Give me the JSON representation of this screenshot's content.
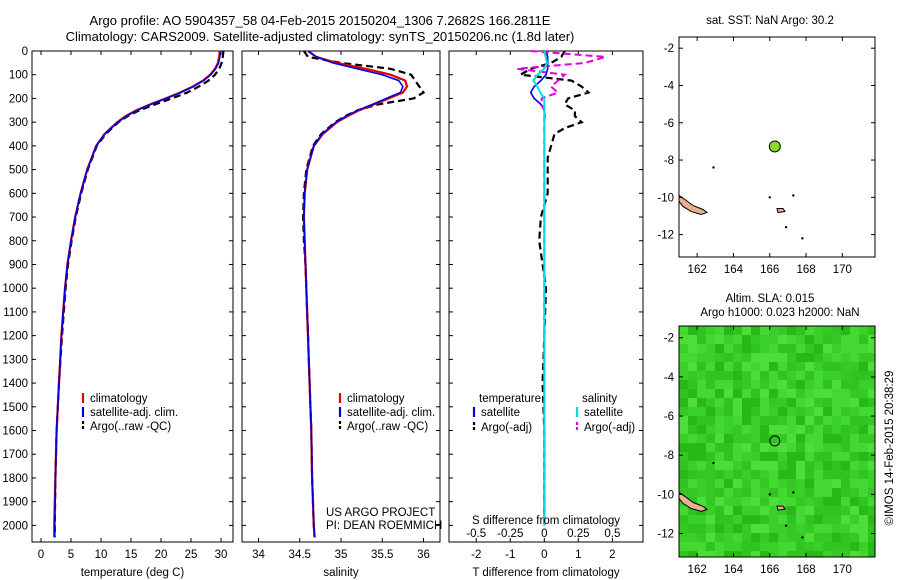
{
  "title": {
    "line1": "Argo profile: AO 5904357_58 04-Feb-2015 20150204_1306 7.2682S 166.2811E",
    "line2": "Climatology: CARS2009. Satellite-adjusted climatology: synTS_20150206.nc (1.8d later)"
  },
  "depth_axis": {
    "ticks": [
      0,
      100,
      200,
      300,
      400,
      500,
      600,
      700,
      800,
      900,
      1000,
      1100,
      1200,
      1300,
      1400,
      1500,
      1600,
      1700,
      1800,
      1900,
      2000
    ],
    "ylim": [
      0,
      2070
    ]
  },
  "colors": {
    "climatology": "#e00000",
    "satellite": "#0000e0",
    "argo": "#000000",
    "sal_satellite": "#00e0e0",
    "sal_argo": "#e000e0",
    "sla_green": "#33cc22",
    "sst_dot": "#88dd22",
    "land": "#e8b090"
  },
  "chart_data": [
    {
      "type": "line",
      "panel": "temperature",
      "xlabel": "temperature (deg C)",
      "xlim": [
        -1.5,
        32
      ],
      "xticks": [
        "0",
        "5",
        "10",
        "15",
        "20",
        "25",
        "30"
      ],
      "legend": [
        "climatology",
        "satellite-adj. clim.",
        "Argo(..raw -QC)"
      ],
      "depth": [
        0,
        25,
        50,
        75,
        100,
        125,
        150,
        175,
        200,
        225,
        250,
        275,
        300,
        350,
        400,
        500,
        600,
        700,
        800,
        900,
        1000,
        1200,
        1400,
        1600,
        1800,
        2000,
        2050
      ],
      "series": [
        {
          "name": "climatology",
          "values": [
            29.8,
            29.7,
            29.5,
            29.0,
            28.2,
            27.0,
            25.3,
            23.2,
            20.8,
            18.2,
            15.9,
            14.1,
            12.7,
            10.6,
            9.2,
            7.7,
            6.6,
            5.7,
            5.0,
            4.4,
            4.0,
            3.4,
            3.0,
            2.6,
            2.4,
            2.2,
            2.2
          ]
        },
        {
          "name": "satellite-adj. clim.",
          "values": [
            29.9,
            29.8,
            29.6,
            29.1,
            28.3,
            27.1,
            25.4,
            23.3,
            20.9,
            18.3,
            16.0,
            14.2,
            12.8,
            10.6,
            9.2,
            7.7,
            6.6,
            5.7,
            5.0,
            4.4,
            4.0,
            3.4,
            3.0,
            2.6,
            2.4,
            2.3,
            2.3
          ]
        },
        {
          "name": "Argo(..raw -QC)",
          "values": [
            30.4,
            30.3,
            30.1,
            29.7,
            29.0,
            27.9,
            26.3,
            24.4,
            21.8,
            19.0,
            16.4,
            14.4,
            12.9,
            10.8,
            9.3,
            7.8,
            6.7,
            5.8,
            5.1,
            4.5,
            4.1,
            3.5,
            3.0,
            2.6,
            2.4,
            2.3,
            2.3
          ]
        }
      ]
    },
    {
      "type": "line",
      "panel": "salinity",
      "xlabel": "salinity",
      "xlim": [
        33.8,
        36.2
      ],
      "xticks": [
        "34",
        "34.5",
        "35",
        "35.5",
        "36"
      ],
      "legend": [
        "climatology",
        "satellite-adj. clim.",
        "Argo(..raw -QC)"
      ],
      "credit": [
        "US ARGO PROJECT",
        "PI: DEAN ROEMMICH"
      ],
      "depth": [
        0,
        25,
        50,
        75,
        100,
        125,
        150,
        175,
        200,
        225,
        250,
        275,
        300,
        350,
        400,
        500,
        600,
        700,
        800,
        900,
        1000,
        1200,
        1400,
        1600,
        1800,
        2000,
        2050
      ],
      "series": [
        {
          "name": "climatology",
          "values": [
            34.6,
            34.7,
            34.95,
            35.3,
            35.6,
            35.78,
            35.8,
            35.75,
            35.58,
            35.4,
            35.22,
            35.08,
            34.95,
            34.78,
            34.67,
            34.59,
            34.56,
            34.55,
            34.56,
            34.57,
            34.58,
            34.6,
            34.62,
            34.64,
            34.65,
            34.67,
            34.68
          ]
        },
        {
          "name": "satellite-adj. clim.",
          "values": [
            34.6,
            34.7,
            34.9,
            35.2,
            35.5,
            35.7,
            35.75,
            35.72,
            35.55,
            35.38,
            35.2,
            35.06,
            34.94,
            34.77,
            34.67,
            34.59,
            34.56,
            34.55,
            34.56,
            34.57,
            34.58,
            34.6,
            34.62,
            34.64,
            34.65,
            34.67,
            34.68
          ]
        },
        {
          "name": "Argo(..raw -QC)",
          "values": [
            34.55,
            34.6,
            35.0,
            35.6,
            35.85,
            35.9,
            35.95,
            36.0,
            35.88,
            35.45,
            35.2,
            35.05,
            34.93,
            34.76,
            34.66,
            34.58,
            34.55,
            34.54,
            34.55,
            34.57,
            34.58,
            34.6,
            34.62,
            34.64,
            34.65,
            34.67,
            34.68
          ]
        }
      ]
    },
    {
      "type": "line",
      "panel": "difference",
      "xlabel": "T difference from climatology",
      "xlabel_top": "S difference from climatology",
      "xlim": [
        -2.8,
        2.9
      ],
      "xticks": [
        "-2",
        "-1",
        "0",
        "1",
        "2"
      ],
      "xticks_top": [
        "-0.5",
        "-0.25",
        "0",
        "0.25",
        "0.5"
      ],
      "legend_headers": [
        "temperature",
        "salinity"
      ],
      "legend": [
        "satellite",
        "Argo(-adj)",
        "satellite",
        "Argo(-adj)"
      ],
      "depth": [
        0,
        25,
        50,
        75,
        100,
        125,
        150,
        175,
        200,
        225,
        250,
        275,
        300,
        325,
        350,
        400,
        450,
        500,
        600,
        700,
        800,
        900,
        1000,
        1200,
        1400,
        1600,
        1800,
        2000
      ],
      "series": [
        {
          "name": "T satellite",
          "values": [
            0.05,
            0.1,
            0.1,
            0.1,
            0.05,
            -0.1,
            -0.3,
            -0.4,
            -0.3,
            -0.1,
            0.0,
            0.02,
            0.0,
            0.0,
            0.0,
            0.0,
            0.0,
            0.0,
            0.0,
            0.0,
            0.0,
            0.0,
            0.0,
            0.0,
            0.0,
            0.0,
            0.0,
            0.0
          ]
        },
        {
          "name": "T Argo(-adj)",
          "values": [
            0.6,
            0.5,
            0.2,
            -0.4,
            -0.7,
            0.8,
            1.1,
            1.3,
            0.7,
            0.6,
            0.9,
            0.9,
            1.1,
            0.6,
            0.3,
            0.2,
            0.1,
            0.1,
            0.1,
            -0.1,
            -0.15,
            -0.05,
            0.05,
            0.0,
            -0.05,
            0.0,
            0.0,
            0.0
          ]
        },
        {
          "name": "S satellite",
          "values": [
            0.0,
            0.01,
            0.02,
            0.0,
            -0.05,
            -0.08,
            -0.05,
            -0.03,
            0.0,
            0.0,
            0.0,
            0.0,
            0.0,
            0.0,
            0.0,
            0.0,
            0.0,
            0.0,
            0.0,
            0.0,
            0.0,
            0.0,
            0.0,
            0.0,
            0.0,
            0.0,
            0.0,
            0.0
          ]
        },
        {
          "name": "S Argo(-adj)",
          "values": [
            -0.1,
            0.45,
            0.3,
            -0.2,
            0.15,
            0.1,
            0.05,
            0.1,
            -0.02,
            -0.02,
            0.0,
            0.0,
            0.0,
            0.0,
            0.0,
            0.0,
            0.0,
            0.0,
            0.0,
            0.0,
            0.0,
            0.0,
            0.0,
            0.0,
            0.0,
            0.0,
            0.0,
            0.0
          ]
        }
      ]
    },
    {
      "type": "scatter",
      "panel": "sst-map",
      "title": "sat. SST: NaN Argo: 30.2",
      "xlim": [
        161,
        171.8
      ],
      "ylim": [
        -13.2,
        -1.4
      ],
      "xticks": [
        "162",
        "164",
        "166",
        "168",
        "170"
      ],
      "yticks": [
        "-2",
        "-4",
        "-6",
        "-8",
        "-10",
        "-12"
      ],
      "argo_position": {
        "lon": 166.28,
        "lat": -7.27
      }
    },
    {
      "type": "heatmap",
      "panel": "sla-map",
      "title_line1": "Altim. SLA: 0.015",
      "title_line2": "Argo h1000: 0.023 h2000: NaN",
      "xlim": [
        161,
        171.8
      ],
      "ylim": [
        -13.2,
        -1.4
      ],
      "xticks": [
        "162",
        "164",
        "166",
        "168",
        "170"
      ],
      "yticks": [
        "-2",
        "-4",
        "-6",
        "-8",
        "-10",
        "-12"
      ],
      "argo_position": {
        "lon": 166.28,
        "lat": -7.27
      }
    }
  ],
  "footer": {
    "side_text": "©IMOS 14-Feb-2015 20:38:29"
  }
}
